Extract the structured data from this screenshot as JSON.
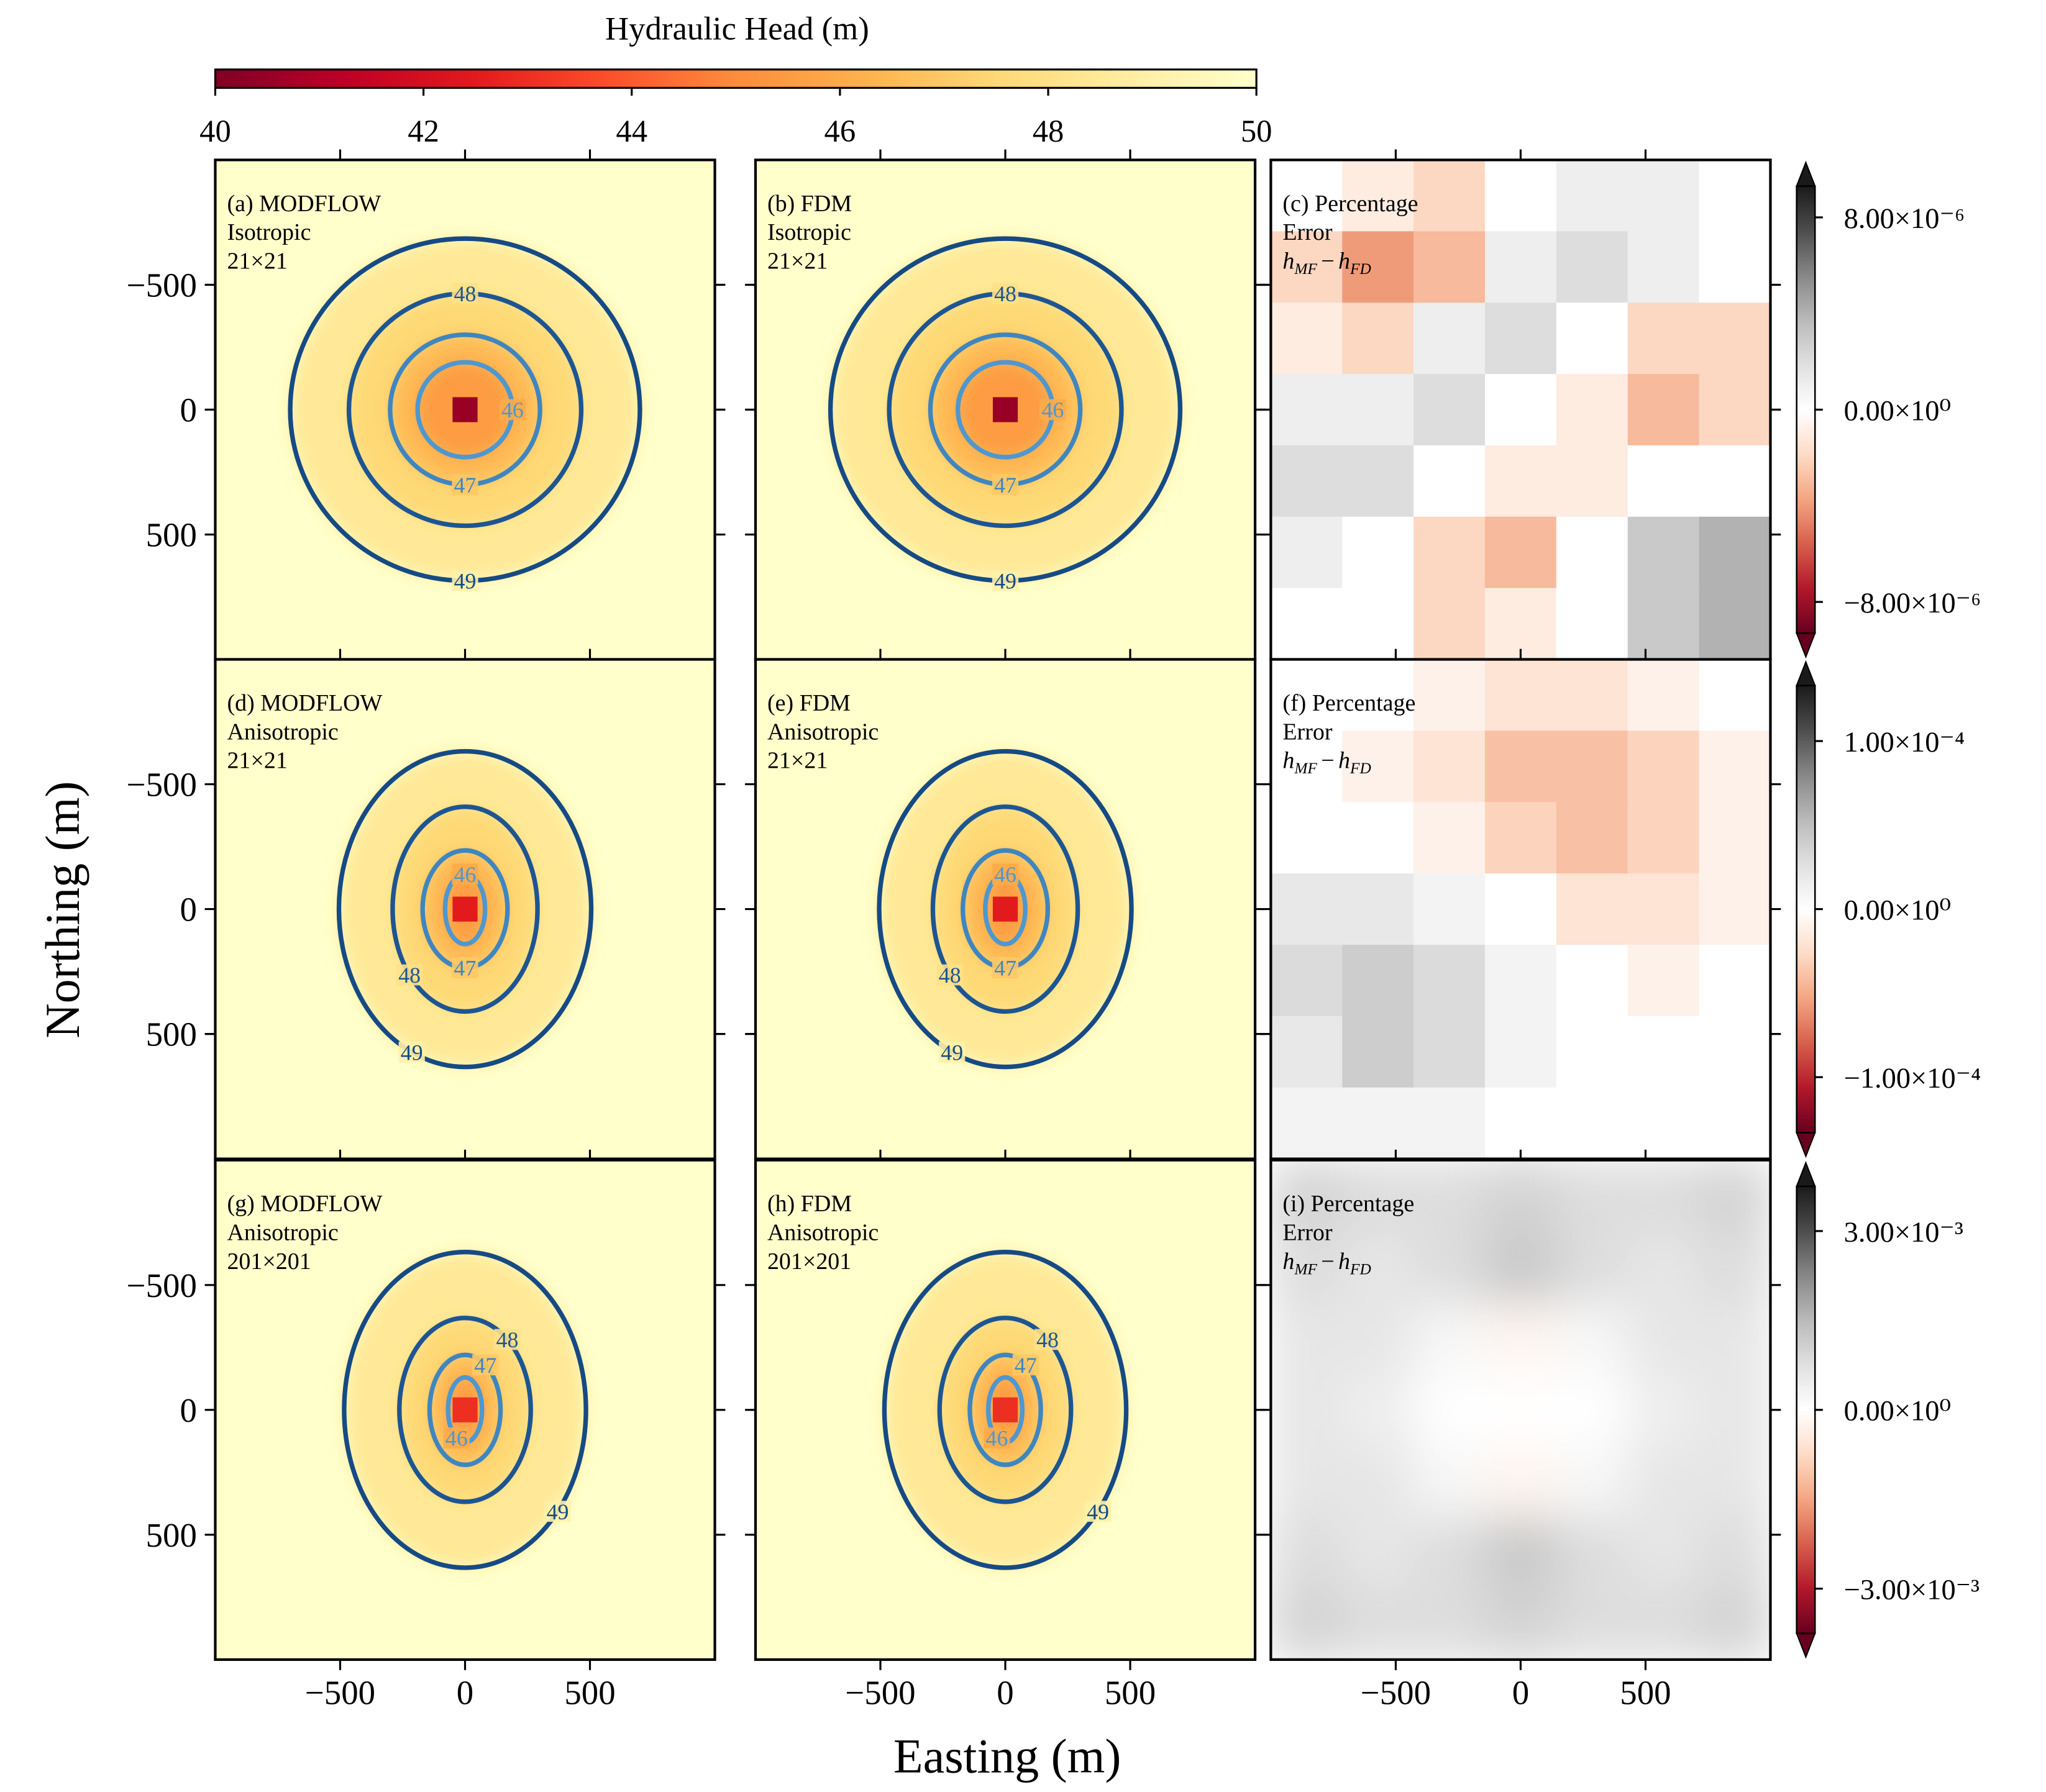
{
  "chart_data": {
    "type": "heatmap-grid",
    "xlabel": "Easting (m)",
    "ylabel": "Northing (m)",
    "xlim": [
      -1000,
      1000
    ],
    "ylim": [
      -1000,
      1000
    ],
    "y_inverted": true,
    "xticks": [
      {
        "value": -500,
        "label": "−500"
      },
      0,
      500
    ],
    "yticks": [
      {
        "value": -500,
        "label": "−500"
      },
      0,
      500
    ],
    "head_colorbar": {
      "label": "Hydraulic Head (m)",
      "clim": [
        40,
        50
      ],
      "ticks": [
        40,
        42,
        44,
        46,
        48,
        50
      ]
    },
    "panels": [
      {
        "type": "contour",
        "labels": [
          "(a) MODFLOW",
          "Isotropic",
          "21×21"
        ],
        "well_head": 40.5,
        "contours": [
          {
            "level": 46,
            "rx": 190,
            "ry": 190,
            "color": "#4f97cf"
          },
          {
            "level": 47,
            "rx": 300,
            "ry": 300,
            "color": "#3f86c0"
          },
          {
            "level": 48,
            "rx": 465,
            "ry": 465,
            "color": "#1d5593"
          },
          {
            "level": 49,
            "rx": 700,
            "ry": 685,
            "color": "#164a85"
          }
        ]
      },
      {
        "type": "contour",
        "labels": [
          "(b) FDM",
          "Isotropic",
          "21×21"
        ],
        "well_head": 40.5,
        "contours": [
          {
            "level": 46,
            "rx": 190,
            "ry": 190,
            "color": "#4f97cf"
          },
          {
            "level": 47,
            "rx": 300,
            "ry": 300,
            "color": "#3f86c0"
          },
          {
            "level": 48,
            "rx": 465,
            "ry": 465,
            "color": "#1d5593"
          },
          {
            "level": 49,
            "rx": 700,
            "ry": 685,
            "color": "#164a85"
          }
        ]
      },
      {
        "type": "heatmap",
        "labels": [
          "(c) Percentage",
          "Error"
        ],
        "formula": {
          "terms": [
            {
              "base": "h",
              "sub": "MF"
            },
            {
              "base": "h",
              "sub": "FD"
            }
          ],
          "operator": "−"
        },
        "interpolation": "nearest",
        "colorbar": {
          "clim": [
            -9.3e-06,
            9.3e-06
          ],
          "ticks": [
            {
              "value": 8e-06,
              "label": "8.00×10⁻⁶"
            },
            {
              "value": 0,
              "label": "0.00×10⁰"
            },
            {
              "value": -8e-06,
              "label": "−8.00×10⁻⁶"
            }
          ]
        },
        "values": [
          [
            0,
            -1e-06,
            -2e-06,
            0,
            1e-06,
            1e-06,
            0
          ],
          [
            -2e-06,
            -4e-06,
            -3e-06,
            1e-06,
            2e-06,
            1e-06,
            0
          ],
          [
            -1e-06,
            -2e-06,
            1e-06,
            2e-06,
            0,
            -2e-06,
            -2e-06
          ],
          [
            1e-06,
            1e-06,
            2e-06,
            0,
            -1e-06,
            -3e-06,
            -2e-06
          ],
          [
            2e-06,
            2e-06,
            0,
            -1e-06,
            -1e-06,
            0,
            0
          ],
          [
            1e-06,
            0,
            -2e-06,
            -3e-06,
            0,
            3e-06,
            4e-06
          ],
          [
            0,
            0,
            -2e-06,
            -1e-06,
            0,
            3e-06,
            4e-06
          ]
        ]
      },
      {
        "type": "contour",
        "labels": [
          "(d) MODFLOW",
          "Anisotropic",
          "21×21"
        ],
        "well_head": 42.5,
        "contours": [
          {
            "level": 46,
            "rx": 80,
            "ry": 140,
            "color": "#4f97cf"
          },
          {
            "level": 47,
            "rx": 170,
            "ry": 235,
            "color": "#3f86c0"
          },
          {
            "level": 48,
            "rx": 290,
            "ry": 410,
            "color": "#1d5593"
          },
          {
            "level": 49,
            "rx": 505,
            "ry": 632,
            "color": "#164a85"
          }
        ]
      },
      {
        "type": "contour",
        "labels": [
          "(e) FDM",
          "Anisotropic",
          "21×21"
        ],
        "well_head": 42.5,
        "contours": [
          {
            "level": 46,
            "rx": 80,
            "ry": 140,
            "color": "#4f97cf"
          },
          {
            "level": 47,
            "rx": 170,
            "ry": 235,
            "color": "#3f86c0"
          },
          {
            "level": 48,
            "rx": 290,
            "ry": 410,
            "color": "#1d5593"
          },
          {
            "level": 49,
            "rx": 505,
            "ry": 632,
            "color": "#164a85"
          }
        ]
      },
      {
        "type": "heatmap",
        "labels": [
          "(f) Percentage",
          "Error"
        ],
        "formula": {
          "terms": [
            {
              "base": "h",
              "sub": "MF"
            },
            {
              "base": "h",
              "sub": "FD"
            }
          ],
          "operator": "−"
        },
        "interpolation": "nearest",
        "colorbar": {
          "clim": [
            -0.000133,
            0.000133
          ],
          "ticks": [
            {
              "value": 0.0001,
              "label": "1.00×10⁻⁴"
            },
            {
              "value": 0,
              "label": "0.00×10⁰"
            },
            {
              "value": -0.0001,
              "label": "−1.00×10⁻⁴"
            }
          ]
        },
        "values": [
          [
            0,
            0,
            -1e-05,
            -2e-05,
            -2e-05,
            -1e-05,
            0
          ],
          [
            0,
            -1e-05,
            -2e-05,
            -4e-05,
            -4e-05,
            -3e-05,
            -1e-05
          ],
          [
            0,
            0,
            -1e-05,
            -3e-05,
            -4e-05,
            -3e-05,
            -1e-05
          ],
          [
            2e-05,
            2e-05,
            1e-05,
            0,
            -2e-05,
            -2e-05,
            -1e-05
          ],
          [
            3e-05,
            4e-05,
            3e-05,
            1e-05,
            0,
            -1e-05,
            0
          ],
          [
            2e-05,
            4e-05,
            3e-05,
            1e-05,
            0,
            0,
            0
          ],
          [
            1e-05,
            1e-05,
            1e-05,
            0,
            0,
            0,
            0
          ]
        ]
      },
      {
        "type": "contour",
        "labels": [
          "(g) MODFLOW",
          "Anisotropic",
          "201×201"
        ],
        "well_head": 43,
        "contours": [
          {
            "level": 46,
            "rx": 68,
            "ry": 130,
            "color": "#4f97cf"
          },
          {
            "level": 47,
            "rx": 142,
            "ry": 220,
            "color": "#3f86c0"
          },
          {
            "level": 48,
            "rx": 263,
            "ry": 368,
            "color": "#1d5593"
          },
          {
            "level": 49,
            "rx": 484,
            "ry": 632,
            "color": "#164a85"
          }
        ]
      },
      {
        "type": "contour",
        "labels": [
          "(h) FDM",
          "Anisotropic",
          "201×201"
        ],
        "well_head": 43,
        "contours": [
          {
            "level": 46,
            "rx": 68,
            "ry": 130,
            "color": "#4f97cf"
          },
          {
            "level": 47,
            "rx": 142,
            "ry": 220,
            "color": "#3f86c0"
          },
          {
            "level": 48,
            "rx": 263,
            "ry": 368,
            "color": "#1d5593"
          },
          {
            "level": 49,
            "rx": 484,
            "ry": 632,
            "color": "#164a85"
          }
        ]
      },
      {
        "type": "heatmap",
        "labels": [
          "(i) Percentage",
          "Error"
        ],
        "formula": {
          "terms": [
            {
              "base": "h",
              "sub": "MF"
            },
            {
              "base": "h",
              "sub": "FD"
            }
          ],
          "operator": "−"
        },
        "interpolation": "smooth",
        "colorbar": {
          "clim": [
            -0.00375,
            0.00375
          ],
          "ticks": [
            {
              "value": 0.003,
              "label": "3.00×10⁻³"
            },
            {
              "value": 0,
              "label": "0.00×10⁰"
            },
            {
              "value": -0.003,
              "label": "−3.00×10⁻³"
            }
          ]
        },
        "values": [
          [
            0.001,
            0.0008,
            0.0008,
            0.001,
            0.0008,
            0.0008,
            0.001
          ],
          [
            0.0008,
            0.0006,
            0.0008,
            0.0012,
            0.0008,
            0.0006,
            0.0008
          ],
          [
            0.0006,
            0.0006,
            0.0002,
            -0.0002,
            0.0002,
            0.0006,
            0.0006
          ],
          [
            0.0006,
            0.0004,
            0,
            0,
            0,
            0.0004,
            0.0006
          ],
          [
            0.0006,
            0.0006,
            0.0002,
            -0.0002,
            0.0002,
            0.0006,
            0.0006
          ],
          [
            0.0008,
            0.0006,
            0.0008,
            0.0012,
            0.0008,
            0.0006,
            0.0008
          ],
          [
            0.001,
            0.0008,
            0.0008,
            0.001,
            0.0008,
            0.0008,
            0.001
          ]
        ]
      }
    ]
  }
}
